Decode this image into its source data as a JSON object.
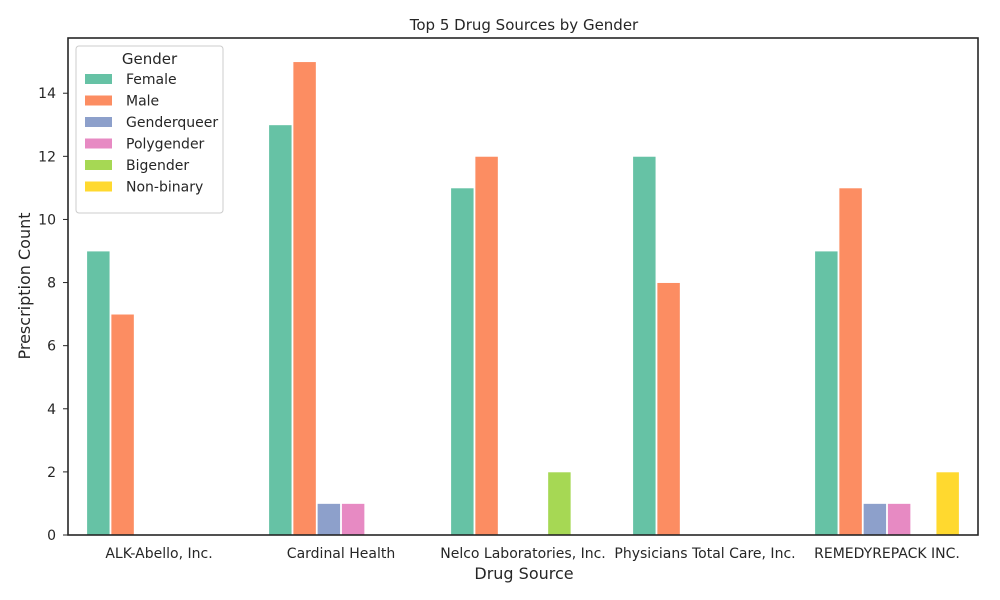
{
  "chart_data": {
    "type": "bar",
    "title": "Top 5 Drug Sources by Gender",
    "xlabel": "Drug Source",
    "ylabel": "Prescription Count",
    "categories": [
      "ALK-Abello, Inc.",
      "Cardinal Health",
      "Nelco Laboratories, Inc.",
      "Physicians Total Care, Inc.",
      "REMEDYREPACK INC."
    ],
    "ylim": [
      0,
      15.75
    ],
    "yticks": [
      0,
      2,
      4,
      6,
      8,
      10,
      12,
      14
    ],
    "grid": false,
    "legend": {
      "title": "Gender",
      "placement": "top-left"
    },
    "series": [
      {
        "name": "Female",
        "color": "#66c2a5",
        "values": [
          9,
          13,
          11,
          12,
          9
        ]
      },
      {
        "name": "Male",
        "color": "#fc8d62",
        "values": [
          7,
          15,
          12,
          8,
          11
        ]
      },
      {
        "name": "Genderqueer",
        "color": "#8da0cb",
        "values": [
          0,
          1,
          0,
          0,
          1
        ]
      },
      {
        "name": "Polygender",
        "color": "#e78ac3",
        "values": [
          0,
          1,
          0,
          0,
          1
        ]
      },
      {
        "name": "Bigender",
        "color": "#a6d854",
        "values": [
          0,
          0,
          2,
          0,
          0
        ]
      },
      {
        "name": "Non-binary",
        "color": "#ffd92f",
        "values": [
          0,
          0,
          0,
          0,
          2
        ]
      }
    ]
  }
}
